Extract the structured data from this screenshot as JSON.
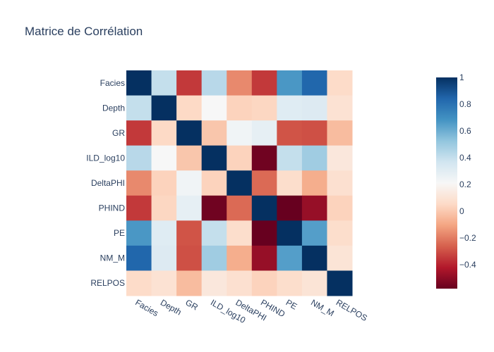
{
  "chart_data": {
    "type": "heatmap",
    "title": "Matrice de Corrélation",
    "x_labels": [
      "Facies",
      "Depth",
      "GR",
      "ILD_log10",
      "DeltaPHI",
      "PHIND",
      "PE",
      "NM_M",
      "RELPOS"
    ],
    "y_labels": [
      "Facies",
      "Depth",
      "GR",
      "ILD_log10",
      "DeltaPHI",
      "PHIND",
      "PE",
      "NM_M",
      "RELPOS"
    ],
    "z": [
      [
        1.0,
        0.4,
        -0.35,
        0.43,
        -0.17,
        -0.35,
        0.67,
        0.84,
        0.06
      ],
      [
        0.4,
        1.0,
        0.05,
        0.21,
        0.03,
        0.04,
        0.31,
        0.32,
        0.09
      ],
      [
        -0.35,
        0.05,
        1.0,
        -0.01,
        0.24,
        0.28,
        -0.29,
        -0.3,
        -0.04
      ],
      [
        0.43,
        0.21,
        -0.01,
        1.0,
        0.03,
        -0.56,
        0.4,
        0.49,
        0.12
      ],
      [
        -0.17,
        0.03,
        0.24,
        0.03,
        1.0,
        -0.24,
        0.07,
        -0.08,
        0.08
      ],
      [
        -0.35,
        0.04,
        0.28,
        -0.56,
        -0.24,
        1.0,
        -0.58,
        -0.48,
        0.03
      ],
      [
        0.67,
        0.31,
        -0.29,
        0.4,
        0.07,
        -0.58,
        1.0,
        0.65,
        0.07
      ],
      [
        0.84,
        0.32,
        -0.3,
        0.49,
        -0.08,
        -0.48,
        0.65,
        1.0,
        0.1
      ],
      [
        0.06,
        0.09,
        -0.04,
        0.12,
        0.08,
        0.03,
        0.07,
        0.1,
        1.0
      ]
    ],
    "zmin": -0.58,
    "zmax": 1.0,
    "colorscale": "RdBu",
    "colorbar_ticks": [
      1,
      0.8,
      0.6,
      0.4,
      0.2,
      0,
      -0.2,
      -0.4
    ],
    "colorbar_tick_labels": [
      "1",
      "0.8",
      "0.6",
      "0.4",
      "0.2",
      "0",
      "−0.2",
      "−0.4"
    ],
    "x_tick_angle": "diagonal",
    "legend": "colorbar-right"
  }
}
